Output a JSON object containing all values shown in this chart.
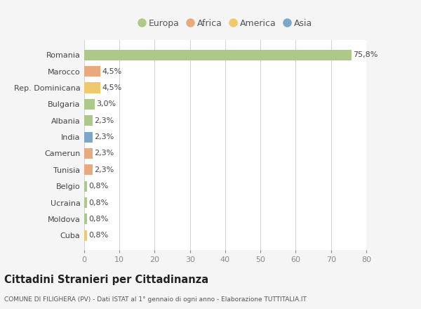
{
  "categories": [
    "Romania",
    "Marocco",
    "Rep. Dominicana",
    "Bulgaria",
    "Albania",
    "India",
    "Camerun",
    "Tunisia",
    "Belgio",
    "Ucraina",
    "Moldova",
    "Cuba"
  ],
  "values": [
    75.8,
    4.5,
    4.5,
    3.0,
    2.3,
    2.3,
    2.3,
    2.3,
    0.8,
    0.8,
    0.8,
    0.8
  ],
  "labels": [
    "75,8%",
    "4,5%",
    "4,5%",
    "3,0%",
    "2,3%",
    "2,3%",
    "2,3%",
    "2,3%",
    "0,8%",
    "0,8%",
    "0,8%",
    "0,8%"
  ],
  "colors": [
    "#adc98a",
    "#e8a97e",
    "#f0c96e",
    "#adc98a",
    "#adc98a",
    "#7ba7c9",
    "#e8a97e",
    "#e8a97e",
    "#adc98a",
    "#adc98a",
    "#adc98a",
    "#f0c96e"
  ],
  "legend_labels": [
    "Europa",
    "Africa",
    "America",
    "Asia"
  ],
  "legend_colors": [
    "#adc98a",
    "#e8a97e",
    "#f0c96e",
    "#7ba7c9"
  ],
  "title": "Cittadini Stranieri per Cittadinanza",
  "subtitle": "COMUNE DI FILIGHERA (PV) - Dati ISTAT al 1° gennaio di ogni anno - Elaborazione TUTTITALIA.IT",
  "xlim": [
    0,
    80
  ],
  "xticks": [
    0,
    10,
    20,
    30,
    40,
    50,
    60,
    70,
    80
  ],
  "background_color": "#f5f5f5",
  "bar_background": "#ffffff",
  "bar_height": 0.65
}
